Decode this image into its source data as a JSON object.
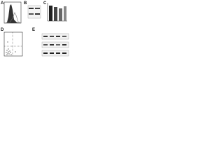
{
  "figure": {
    "panel_labels": [
      "A",
      "B",
      "C",
      "D",
      "E"
    ]
  }
}
